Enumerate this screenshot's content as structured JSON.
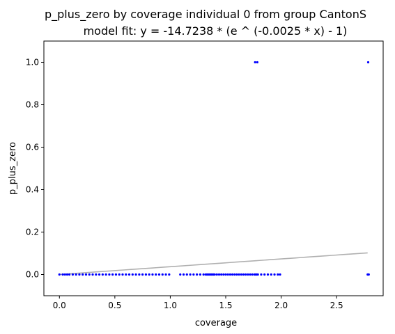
{
  "chart_data": {
    "type": "scatter",
    "title_line1": "p_plus_zero by coverage individual 0 from group CantonS",
    "title_line2": "model fit: y = -14.7238 * (e ^ (-0.0025 * x) - 1)",
    "xlabel": "coverage",
    "ylabel": "p_plus_zero",
    "xlim": [
      -0.14,
      2.92
    ],
    "ylim": [
      -0.1,
      1.1
    ],
    "xticks": [
      0.0,
      0.5,
      1.0,
      1.5,
      2.0,
      2.5
    ],
    "xtick_labels": [
      "0.0",
      "0.5",
      "1.0",
      "1.5",
      "2.0",
      "2.5"
    ],
    "yticks": [
      0.0,
      0.2,
      0.4,
      0.6,
      0.8,
      1.0
    ],
    "ytick_labels": [
      "0.0",
      "0.2",
      "0.4",
      "0.6",
      "0.8",
      "1.0"
    ],
    "grid": false,
    "legend": "none",
    "points": {
      "color": "#0000ff",
      "x": [
        0.0,
        0.03,
        0.05,
        0.07,
        0.09,
        0.12,
        0.15,
        0.18,
        0.21,
        0.24,
        0.27,
        0.3,
        0.33,
        0.36,
        0.39,
        0.42,
        0.45,
        0.48,
        0.51,
        0.54,
        0.57,
        0.6,
        0.63,
        0.66,
        0.69,
        0.72,
        0.75,
        0.78,
        0.81,
        0.84,
        0.87,
        0.9,
        0.93,
        0.96,
        0.99,
        1.09,
        1.12,
        1.15,
        1.18,
        1.21,
        1.24,
        1.27,
        1.3,
        1.32,
        1.33,
        1.34,
        1.35,
        1.36,
        1.37,
        1.38,
        1.39,
        1.4,
        1.42,
        1.44,
        1.46,
        1.48,
        1.5,
        1.52,
        1.54,
        1.56,
        1.58,
        1.6,
        1.62,
        1.64,
        1.66,
        1.68,
        1.7,
        1.72,
        1.74,
        1.76,
        1.77,
        1.78,
        1.79,
        1.82,
        1.85,
        1.88,
        1.91,
        1.94,
        1.97,
        1.99,
        2.78,
        2.785,
        2.79,
        1.765,
        1.785,
        2.785
      ],
      "y": [
        0,
        0,
        0,
        0,
        0,
        0,
        0,
        0,
        0,
        0,
        0,
        0,
        0,
        0,
        0,
        0,
        0,
        0,
        0,
        0,
        0,
        0,
        0,
        0,
        0,
        0,
        0,
        0,
        0,
        0,
        0,
        0,
        0,
        0,
        0,
        0,
        0,
        0,
        0,
        0,
        0,
        0,
        0,
        0,
        0,
        0,
        0,
        0,
        0,
        0,
        0,
        0,
        0,
        0,
        0,
        0,
        0,
        0,
        0,
        0,
        0,
        0,
        0,
        0,
        0,
        0,
        0,
        0,
        0,
        0,
        0,
        0,
        0,
        0,
        0,
        0,
        0,
        0,
        0,
        0,
        0,
        0,
        0,
        1.0,
        1.0,
        1.0
      ]
    },
    "fit_line": {
      "color": "#b0b0b0",
      "a": -14.7238,
      "b": -0.0025,
      "x_range": [
        0.0,
        2.78
      ]
    }
  }
}
